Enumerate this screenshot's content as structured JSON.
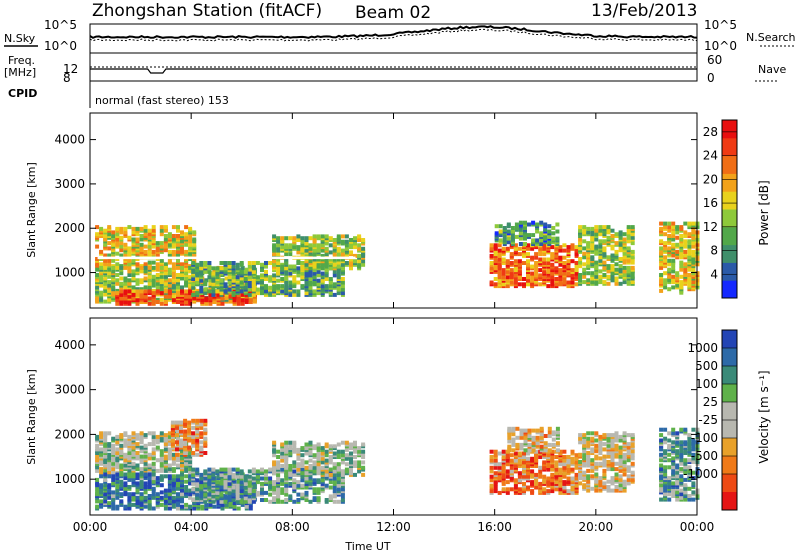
{
  "header": {
    "station": "Zhongshan Station (fitACF)",
    "beam": "Beam 02",
    "date": "13/Feb/2013"
  },
  "summary_panel": {
    "nsky_label": "N.Sky",
    "nsearch_label": "N.Search",
    "noise_ticks": [
      "10^5",
      "10^0"
    ],
    "freq_label": "Freq.",
    "freq_unit": "[MHz]",
    "freq_ticks": [
      "12",
      "8"
    ],
    "nave_label": "Nave",
    "nave_ticks": [
      "60",
      "0"
    ],
    "cpid_label": "CPID",
    "cpid_text": "normal (fast stereo) 153"
  },
  "colors": {
    "power_scale": [
      "#1428ff",
      "#2a5aa8",
      "#3f8f6b",
      "#52a84a",
      "#8ec93a",
      "#e9d21c",
      "#f3a21a",
      "#f06e16",
      "#ef3a14",
      "#e80f0f"
    ],
    "velocity_scale": [
      "#2345b5",
      "#2d6aa8",
      "#3a8a78",
      "#5fb14a",
      "#b8b8b0",
      "#b8b8b0",
      "#e8a12a",
      "#f07a18",
      "#ee4a14",
      "#e51414"
    ]
  },
  "chart_data": [
    {
      "type": "heatmap",
      "panel": "power",
      "ylabel": "Slant Range [km]",
      "yticks": [
        "1000",
        "2000",
        "3000",
        "4000"
      ],
      "ylim": [
        200,
        4600
      ],
      "xlim": [
        "00:00",
        "24:00"
      ],
      "xticks": [
        "00:00",
        "04:00",
        "08:00",
        "12:00",
        "16:00",
        "20:00",
        "00:00"
      ],
      "colorbar_label": "Power [dB]",
      "colorbar_ticks": [
        "4",
        "8",
        "12",
        "16",
        "20",
        "24",
        "28"
      ],
      "colorbar_range": [
        0,
        30
      ],
      "echo_regions": [
        {
          "t0": 0.2,
          "t1": 4.2,
          "r0": 1100,
          "r1": 2000,
          "level": 0.55
        },
        {
          "t0": 0.2,
          "t1": 6.5,
          "r0": 300,
          "r1": 1100,
          "level": 0.45
        },
        {
          "t0": 1.0,
          "t1": 6.5,
          "r0": 250,
          "r1": 550,
          "level": 0.85
        },
        {
          "t0": 4.0,
          "t1": 10.0,
          "r0": 450,
          "r1": 1200,
          "level": 0.35
        },
        {
          "t0": 7.2,
          "t1": 10.8,
          "r0": 1050,
          "r1": 1800,
          "level": 0.45
        },
        {
          "t0": 15.8,
          "t1": 19.2,
          "r0": 650,
          "r1": 1600,
          "level": 0.75
        },
        {
          "t0": 16.0,
          "t1": 18.5,
          "r0": 1600,
          "r1": 2100,
          "level": 0.3
        },
        {
          "t0": 19.3,
          "t1": 21.5,
          "r0": 700,
          "r1": 2000,
          "level": 0.45
        },
        {
          "t0": 22.5,
          "t1": 24.0,
          "r0": 500,
          "r1": 2100,
          "level": 0.55
        }
      ]
    },
    {
      "type": "heatmap",
      "panel": "velocity",
      "ylabel": "Slant Range [km]",
      "xlabel": "Time UT",
      "yticks": [
        "1000",
        "2000",
        "3000",
        "4000"
      ],
      "ylim": [
        200,
        4600
      ],
      "xlim": [
        "00:00",
        "24:00"
      ],
      "xticks": [
        "00:00",
        "04:00",
        "08:00",
        "12:00",
        "16:00",
        "20:00",
        "00:00"
      ],
      "colorbar_label": "Velocity [m s⁻¹]",
      "colorbar_ticks": [
        "1000",
        "500",
        "100",
        "25",
        "-25",
        "-100",
        "-500",
        "-1000"
      ],
      "echo_regions": [
        {
          "t0": 0.2,
          "t1": 4.0,
          "r0": 1100,
          "r1": 2000,
          "level": 0.45
        },
        {
          "t0": 0.2,
          "t1": 6.5,
          "r0": 300,
          "r1": 1100,
          "level": 0.2
        },
        {
          "t0": 3.2,
          "t1": 4.5,
          "r0": 1500,
          "r1": 2300,
          "level": 0.7
        },
        {
          "t0": 4.0,
          "t1": 10.0,
          "r0": 450,
          "r1": 1200,
          "level": 0.3
        },
        {
          "t0": 7.2,
          "t1": 10.8,
          "r0": 1050,
          "r1": 1800,
          "level": 0.45
        },
        {
          "t0": 15.8,
          "t1": 19.2,
          "r0": 650,
          "r1": 1600,
          "level": 0.75
        },
        {
          "t0": 16.5,
          "t1": 18.5,
          "r0": 1600,
          "r1": 2100,
          "level": 0.6
        },
        {
          "t0": 19.3,
          "t1": 21.5,
          "r0": 700,
          "r1": 2000,
          "level": 0.55
        },
        {
          "t0": 22.5,
          "t1": 24.0,
          "r0": 500,
          "r1": 2100,
          "level": 0.3
        }
      ]
    }
  ]
}
